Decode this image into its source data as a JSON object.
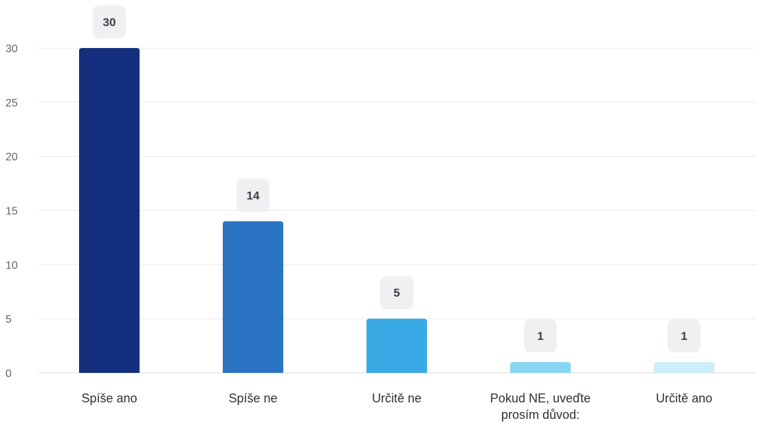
{
  "chart_data": {
    "type": "bar",
    "categories": [
      "Spíše ano",
      "Spíše ne",
      "Určitě ne",
      "Pokud NE, uveďte prosím důvod:",
      "Určitě ano"
    ],
    "category_label_lines": [
      [
        "Spíše ano"
      ],
      [
        "Spíše ne"
      ],
      [
        "Určitě ne"
      ],
      [
        "Pokud NE, uveďte",
        "prosím důvod:"
      ],
      [
        "Určitě ano"
      ]
    ],
    "values": [
      30,
      14,
      5,
      1,
      1
    ],
    "value_labels": [
      "30",
      "14",
      "5",
      "1",
      "1"
    ],
    "bar_colors": [
      "#132f7e",
      "#2b74c4",
      "#3aaae6",
      "#86d6f3",
      "#cdeefb"
    ],
    "yticks": [
      0,
      5,
      10,
      15,
      20,
      25,
      30
    ],
    "ytick_labels": [
      "0",
      "5",
      "10",
      "15",
      "20",
      "25",
      "30"
    ],
    "ylim": [
      0,
      30
    ],
    "grid": true,
    "title": "",
    "xlabel": "",
    "ylabel": ""
  }
}
